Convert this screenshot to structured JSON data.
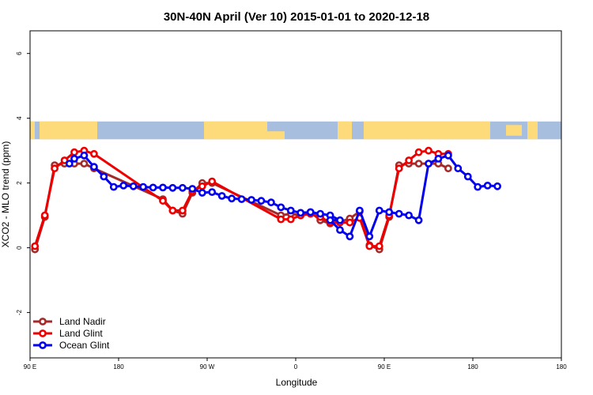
{
  "chart_data": {
    "type": "line",
    "title": "30N-40N April (Ver 10)   2015-01-01 to 2020-12-18",
    "xlabel": "Longitude",
    "ylabel": "XCO2 - MLO trend (ppm)",
    "xlim": [
      -90,
      180
    ],
    "ylim": [
      -3.4,
      6.7
    ],
    "x_ticks": [
      {
        "value": -90,
        "label": "90 E"
      },
      {
        "value": -45,
        "label": "180"
      },
      {
        "value": 0,
        "label": "90 W"
      },
      {
        "value": 45,
        "label": "0"
      },
      {
        "value": 90,
        "label": "90 E"
      },
      {
        "value": 135,
        "label": "180"
      }
    ],
    "y_ticks": [
      -2,
      0,
      2,
      4,
      6
    ],
    "grid": false,
    "legend_position": "bottom-left",
    "map_strip": {
      "y_range": [
        3.35,
        3.9
      ],
      "ocean_color": "#A8BEDF",
      "land_color": "#FDDA7A"
    },
    "series": [
      {
        "name": "Land Nadir",
        "color": "#A52A2A",
        "x": [
          -87.5,
          -82.5,
          -77.5,
          -72.5,
          -67.5,
          -62.5,
          -57.5,
          -22.5,
          -17.5,
          -12.5,
          -7.5,
          -2.5,
          2.5,
          37.5,
          42.5,
          47.5,
          52.5,
          57.5,
          62.5,
          67.5,
          72.5,
          77.5,
          82.5,
          87.5,
          92.5,
          97.5,
          102.5,
          107.5,
          112.5,
          117.5,
          122.5
        ],
        "y": [
          -0.05,
          0.95,
          2.55,
          2.6,
          2.6,
          2.6,
          2.45,
          1.5,
          1.15,
          1.05,
          1.7,
          2.0,
          2.0,
          1.0,
          1.05,
          1.0,
          1.1,
          0.85,
          0.75,
          0.8,
          0.9,
          1.12,
          0.08,
          -0.05,
          0.95,
          2.55,
          2.6,
          2.6,
          2.6,
          2.6,
          2.45
        ]
      },
      {
        "name": "Land Glint",
        "color": "#EE0000",
        "x": [
          -87.5,
          -82.5,
          -77.5,
          -72.5,
          -67.5,
          -62.5,
          -57.5,
          -22.5,
          -17.5,
          -12.5,
          -7.5,
          -2.5,
          2.5,
          37.5,
          42.5,
          47.5,
          52.5,
          57.5,
          62.5,
          67.5,
          72.5,
          77.5,
          82.5,
          87.5,
          92.5,
          97.5,
          102.5,
          107.5,
          112.5,
          117.5,
          122.5
        ],
        "y": [
          0.05,
          1.0,
          2.45,
          2.7,
          2.95,
          3.0,
          2.9,
          1.45,
          1.15,
          1.15,
          1.75,
          1.9,
          2.05,
          0.88,
          0.88,
          1.0,
          1.05,
          0.95,
          0.78,
          0.78,
          0.78,
          0.92,
          0.05,
          0.05,
          1.0,
          2.45,
          2.7,
          2.95,
          3.0,
          2.9,
          2.9
        ]
      },
      {
        "name": "Ocean Glint",
        "color": "#0000EE",
        "x": [
          -70,
          -67.5,
          -62.5,
          -57.5,
          -52.5,
          -47.5,
          -42.5,
          -37.5,
          -32.5,
          -27.5,
          -22.5,
          -17.5,
          -12.5,
          -7.5,
          -2.5,
          2.5,
          7.5,
          12.5,
          17.5,
          22.5,
          27.5,
          32.5,
          37.5,
          42.5,
          47.5,
          52.5,
          57.5,
          62.5,
          67.5,
          62.5,
          67.5,
          72.5,
          77.5,
          82.5,
          87.5,
          92.5,
          97.5,
          102.5,
          107.5,
          112.5,
          117.5,
          122.5,
          127.5,
          132.5,
          137.5,
          142.5,
          147.5
        ],
        "y": [
          2.6,
          2.75,
          2.85,
          2.5,
          2.2,
          1.88,
          1.92,
          1.9,
          1.88,
          1.86,
          1.86,
          1.85,
          1.85,
          1.82,
          1.7,
          1.72,
          1.6,
          1.52,
          1.5,
          1.48,
          1.45,
          1.4,
          1.25,
          1.15,
          1.08,
          1.1,
          1.05,
          1.0,
          0.85,
          0.85,
          0.55,
          0.35,
          1.15,
          0.35,
          1.15,
          1.1,
          1.05,
          1.0,
          0.85,
          2.6,
          2.75,
          2.85,
          2.45,
          2.2,
          1.88,
          1.92,
          1.9
        ]
      }
    ],
    "legend": [
      "Land Nadir",
      "Land Glint",
      "Ocean Glint"
    ]
  }
}
